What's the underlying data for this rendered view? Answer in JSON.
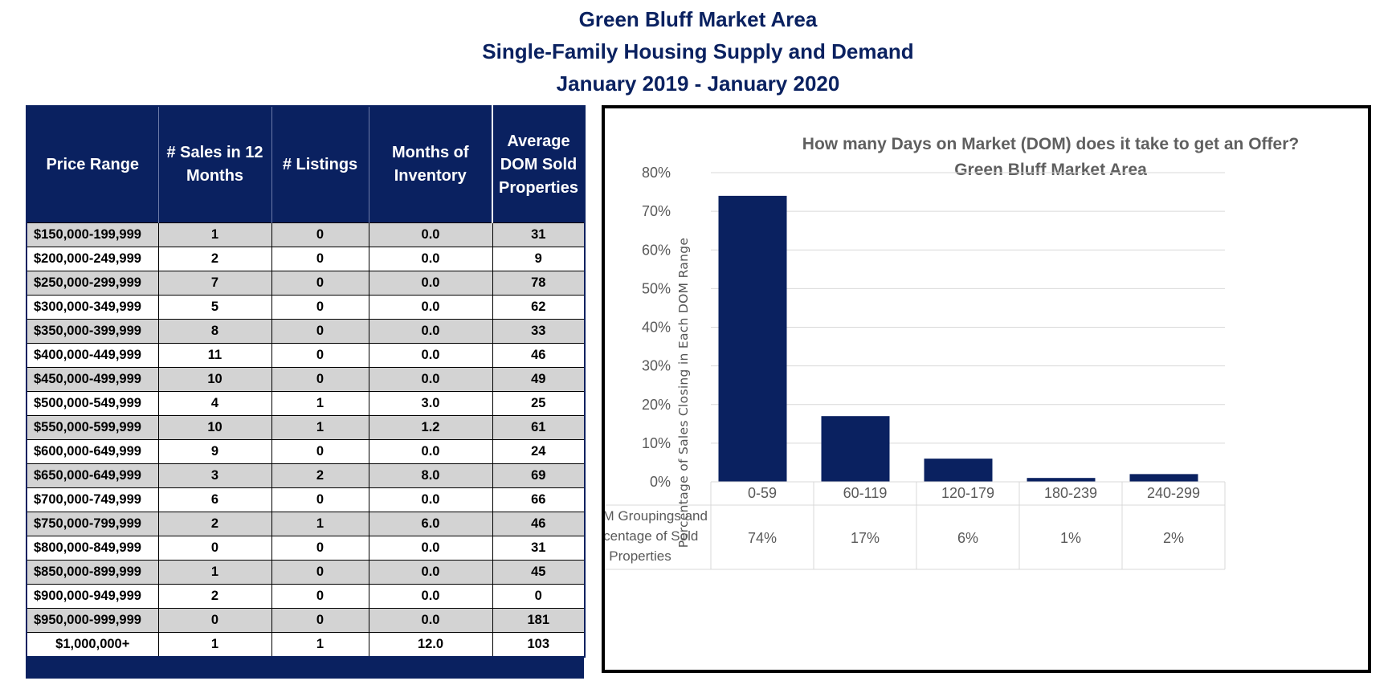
{
  "page": {
    "title_lines": [
      "Green Bluff Market Area",
      "Single-Family Housing Supply and Demand",
      "January 2019 - January 2020"
    ]
  },
  "table": {
    "headers": [
      "Price Range",
      "# Sales in 12 Months",
      "# Listings",
      "Months of Inventory",
      "Average DOM Sold Properties"
    ],
    "rows": [
      [
        "$150,000-199,999",
        "1",
        "0",
        "0.0",
        "31"
      ],
      [
        "$200,000-249,999",
        "2",
        "0",
        "0.0",
        "9"
      ],
      [
        "$250,000-299,999",
        "7",
        "0",
        "0.0",
        "78"
      ],
      [
        "$300,000-349,999",
        "5",
        "0",
        "0.0",
        "62"
      ],
      [
        "$350,000-399,999",
        "8",
        "0",
        "0.0",
        "33"
      ],
      [
        "$400,000-449,999",
        "11",
        "0",
        "0.0",
        "46"
      ],
      [
        "$450,000-499,999",
        "10",
        "0",
        "0.0",
        "49"
      ],
      [
        "$500,000-549,999",
        "4",
        "1",
        "3.0",
        "25"
      ],
      [
        "$550,000-599,999",
        "10",
        "1",
        "1.2",
        "61"
      ],
      [
        "$600,000-649,999",
        "9",
        "0",
        "0.0",
        "24"
      ],
      [
        "$650,000-649,999",
        "3",
        "2",
        "8.0",
        "69"
      ],
      [
        "$700,000-749,999",
        "6",
        "0",
        "0.0",
        "66"
      ],
      [
        "$750,000-799,999",
        "2",
        "1",
        "6.0",
        "46"
      ],
      [
        "$800,000-849,999",
        "0",
        "0",
        "0.0",
        "31"
      ],
      [
        "$850,000-899,999",
        "1",
        "0",
        "0.0",
        "45"
      ],
      [
        "$900,000-949,999",
        "2",
        "0",
        "0.0",
        "0"
      ],
      [
        "$950,000-999,999",
        "0",
        "0",
        "0.0",
        "181"
      ],
      [
        "$1,000,000+",
        "1",
        "1",
        "12.0",
        "103"
      ]
    ]
  },
  "colors": {
    "navy": "#0a2160",
    "row_alt": "#d3d3d3",
    "bar": "#0a2160",
    "grid": "#d9d9d9",
    "axis_text": "#595959"
  },
  "chart_data": {
    "type": "bar",
    "title": "How many Days on Market (DOM) does it take to get an Offer?",
    "subtitle": "Green Bluff Market Area",
    "ylabel": "Percentage of Sales Closing in Each DOM Range",
    "xlabel": "",
    "categories": [
      "0-59",
      "60-119",
      "120-179",
      "180-239",
      "240-299"
    ],
    "series": [
      {
        "name": "DOM Groupings and Percentage of Sold Properties",
        "values": [
          74,
          17,
          6,
          1,
          2
        ],
        "value_labels": [
          "74%",
          "17%",
          "6%",
          "1%",
          "2%"
        ]
      }
    ],
    "ylim": [
      0,
      80
    ],
    "yticks": [
      "0%",
      "10%",
      "20%",
      "30%",
      "40%",
      "50%",
      "60%",
      "70%",
      "80%"
    ],
    "grid": true,
    "legend": "data-table"
  }
}
